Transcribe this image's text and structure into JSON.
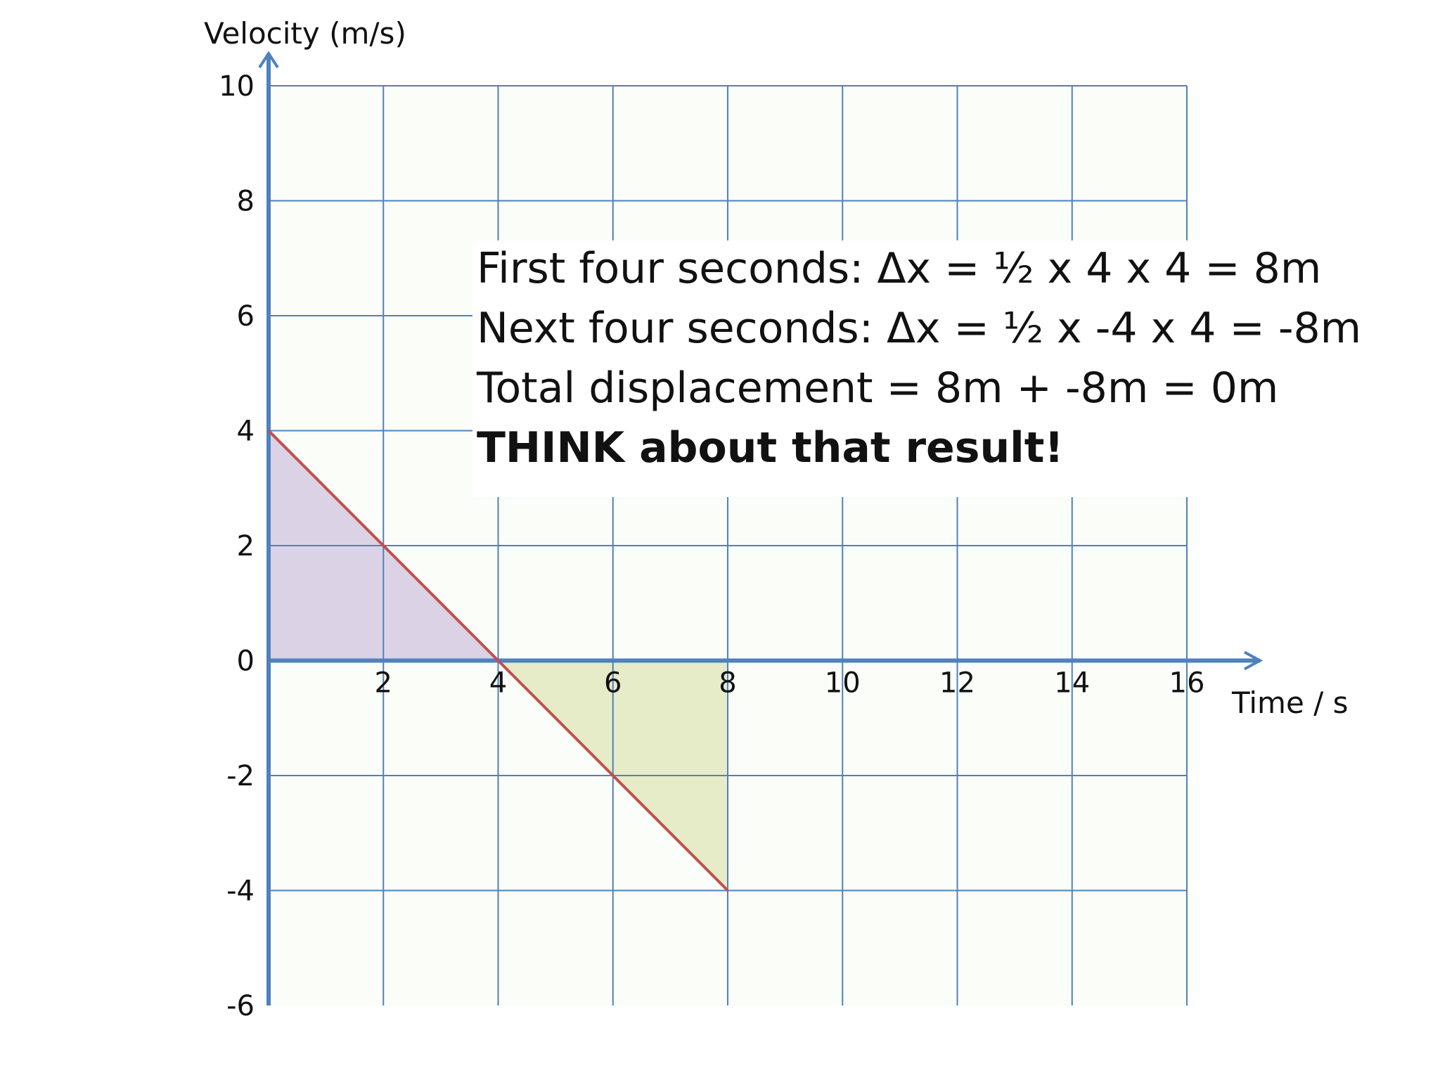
{
  "chart_data": {
    "type": "line",
    "title": "",
    "xlabel": "Time / s",
    "ylabel": "Velocity (m/s)",
    "xlim": [
      0,
      16
    ],
    "ylim": [
      -6,
      10
    ],
    "x_ticks": [
      2,
      4,
      6,
      8,
      10,
      12,
      14,
      16
    ],
    "y_ticks": [
      10,
      8,
      6,
      4,
      2,
      0,
      -2,
      -4,
      -6
    ],
    "grid": true,
    "series": [
      {
        "x": [
          0,
          2,
          4,
          6,
          8
        ],
        "y": [
          4,
          2,
          0,
          -2,
          -4
        ]
      }
    ],
    "shaded_regions": [
      {
        "polygon": [
          [
            0,
            4
          ],
          [
            4,
            0
          ],
          [
            0,
            0
          ]
        ],
        "color": "#dcd2e6"
      },
      {
        "polygon": [
          [
            4,
            0
          ],
          [
            8,
            -4
          ],
          [
            8,
            0
          ]
        ],
        "color": "#e6ebc8"
      }
    ],
    "colors": {
      "axis": "#4f81bd",
      "grid": "#4f81bd",
      "line": "#c0504d",
      "background_tint": "#fbfdf9"
    },
    "annotations": [
      {
        "text": "First four seconds: Δx = ½ x 4 x 4 = 8m",
        "bold": false
      },
      {
        "text": "Next four seconds: Δx = ½ x -4 x 4 = -8m",
        "bold": false
      },
      {
        "text": "Total displacement = 8m + -8m = 0m",
        "bold": false
      },
      {
        "text": "THINK about that result!",
        "bold": true
      }
    ]
  }
}
